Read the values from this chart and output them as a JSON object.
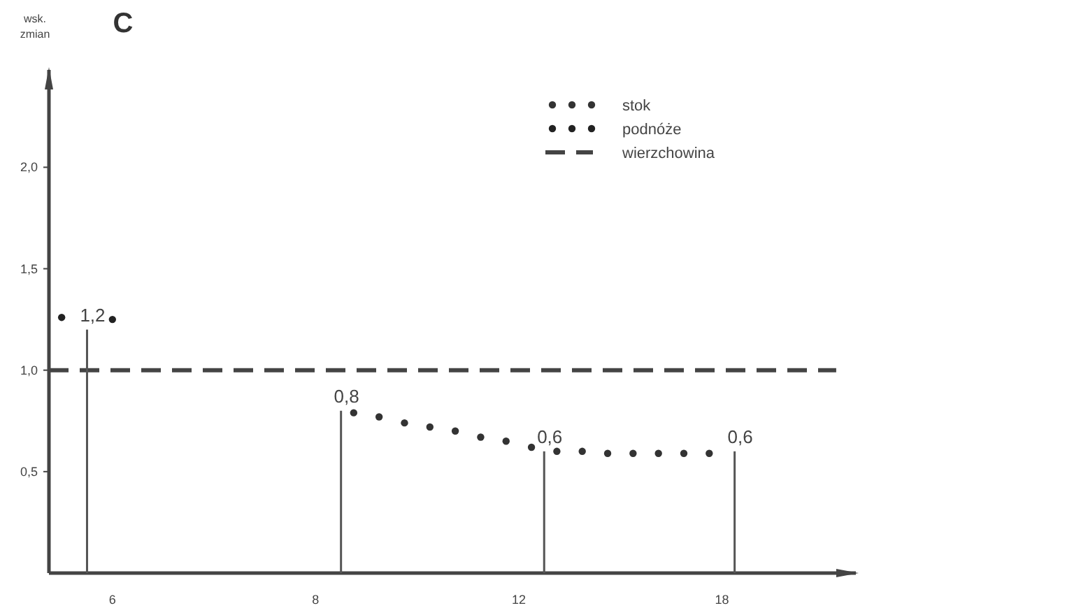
{
  "chart_data": {
    "type": "scatter",
    "title": "C",
    "ylabel": "wsk. zmian",
    "categories": [
      null,
      null,
      null,
      null,
      null,
      "6",
      null,
      null,
      null,
      null,
      null,
      null,
      null,
      null,
      null,
      null,
      null,
      null,
      null,
      null,
      null,
      "8",
      null,
      null,
      null,
      null,
      null,
      null,
      null,
      null,
      null,
      null,
      null,
      null,
      null,
      null,
      null,
      "12",
      null,
      null,
      null,
      null,
      null,
      null,
      null,
      null,
      null,
      null,
      null,
      null,
      null,
      null,
      null,
      "18",
      null,
      null,
      null,
      null,
      null,
      null,
      null,
      null,
      null,
      null
    ],
    "ylim": [
      0,
      2.48
    ],
    "yticks": [
      {
        "value": 0.5,
        "label": "0,5"
      },
      {
        "value": 1.0,
        "label": "1,0"
      },
      {
        "value": 1.5,
        "label": "1,5"
      },
      {
        "value": 2.0,
        "label": "2,0"
      }
    ],
    "grid": false,
    "legend": "top right",
    "series": [
      {
        "name": "stok",
        "color": "#333333",
        "marker": "circle",
        "values": [
          null,
          null,
          null,
          null,
          null,
          null,
          null,
          null,
          null,
          null,
          null,
          null,
          null,
          null,
          null,
          null,
          null,
          null,
          null,
          null,
          null,
          null,
          null,
          null,
          0.79,
          null,
          0.77,
          null,
          0.74,
          null,
          0.72,
          null,
          0.7,
          null,
          0.67,
          null,
          0.65,
          null,
          0.62,
          null,
          0.6,
          null,
          0.6,
          null,
          0.59,
          null,
          0.59,
          null,
          0.59,
          null,
          0.59,
          null,
          0.59,
          null,
          null,
          null,
          null,
          null,
          null,
          null,
          null,
          null,
          null,
          null
        ]
      },
      {
        "name": "podnóże",
        "color": "#222222",
        "marker": "circle",
        "values": [
          null,
          1.26,
          null,
          null,
          null,
          1.25,
          null,
          null,
          null,
          null,
          null,
          null,
          null,
          null,
          null,
          null,
          null,
          null,
          null,
          null,
          null,
          null,
          null,
          null,
          null,
          null,
          null,
          null,
          null,
          null,
          null,
          null,
          null,
          null,
          null,
          null,
          null,
          null,
          null,
          null,
          null,
          null,
          null,
          null,
          null,
          null,
          null,
          null,
          null,
          null,
          null,
          null,
          null,
          null,
          null,
          null,
          null,
          null,
          null,
          null,
          null,
          null,
          null,
          null
        ]
      },
      {
        "type": "line",
        "name": "wierzchowina",
        "color": "#444444",
        "line_style": "dashed",
        "values": [
          1.0,
          1.0,
          1.0,
          1.0,
          1.0,
          1.0,
          1.0,
          1.0,
          1.0,
          1.0,
          1.0,
          1.0,
          1.0,
          1.0,
          1.0,
          1.0,
          1.0,
          1.0,
          1.0,
          1.0,
          1.0,
          1.0,
          1.0,
          1.0,
          1.0,
          1.0,
          1.0,
          1.0,
          1.0,
          1.0,
          1.0,
          1.0,
          1.0,
          1.0,
          1.0,
          1.0,
          1.0,
          1.0,
          1.0,
          1.0,
          1.0,
          1.0,
          1.0,
          1.0,
          1.0,
          1.0,
          1.0,
          1.0,
          1.0,
          1.0,
          1.0,
          1.0,
          1.0,
          1.0,
          1.0,
          1.0,
          1.0,
          1.0,
          1.0,
          1.0,
          1.0,
          1.0,
          1.0,
          null
        ]
      },
      {
        "type": "bar",
        "color": "#555555",
        "values": [
          null,
          null,
          null,
          1.2,
          null,
          null,
          null,
          null,
          null,
          null,
          null,
          null,
          null,
          null,
          null,
          null,
          null,
          null,
          null,
          null,
          null,
          null,
          null,
          0.8,
          null,
          null,
          null,
          null,
          null,
          null,
          null,
          null,
          null,
          null,
          null,
          null,
          null,
          null,
          null,
          0.6,
          null,
          null,
          null,
          null,
          null,
          null,
          null,
          null,
          null,
          null,
          null,
          null,
          null,
          null,
          0.6,
          null,
          null,
          null,
          null,
          null,
          null,
          null,
          null,
          null
        ],
        "value_labels": [
          null,
          null,
          null,
          "1,2",
          null,
          null,
          null,
          null,
          null,
          null,
          null,
          null,
          null,
          null,
          null,
          null,
          null,
          null,
          null,
          null,
          null,
          null,
          null,
          "0,8",
          null,
          null,
          null,
          null,
          null,
          null,
          null,
          null,
          null,
          null,
          null,
          null,
          null,
          null,
          null,
          "0,6",
          null,
          null,
          null,
          null,
          null,
          null,
          null,
          null,
          null,
          null,
          null,
          null,
          null,
          null,
          "0,6",
          null,
          null,
          null,
          null,
          null,
          null,
          null,
          null,
          null
        ]
      }
    ]
  }
}
